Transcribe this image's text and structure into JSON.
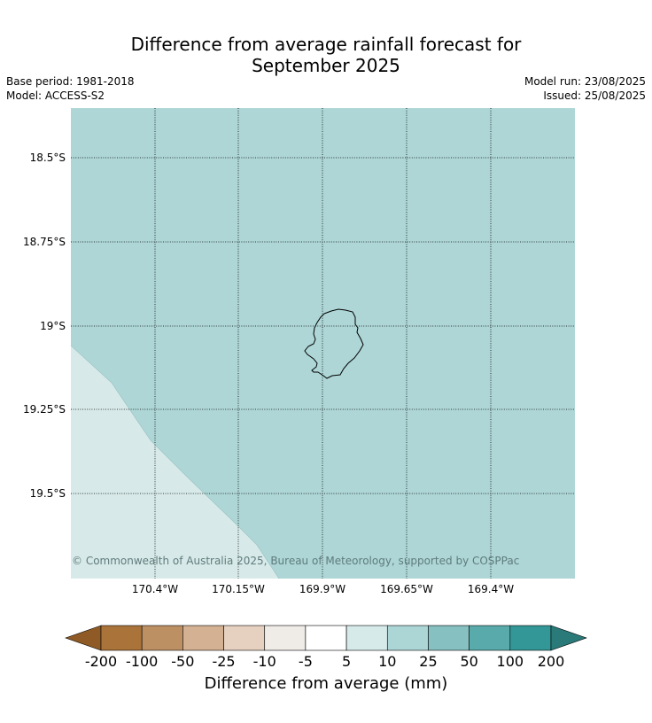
{
  "title_line1": "Difference from average rainfall forecast for",
  "title_line2": "September 2025",
  "base_period": "Base period: 1981-2018",
  "model": "Model: ACCESS-S2",
  "model_run": "Model run: 23/08/2025",
  "issued": "Issued: 25/08/2025",
  "copyright": "© Commonwealth of Australia 2025, Bureau of Meteorology, supported by COSPPac",
  "lat_labels": [
    "18.5°S",
    "18.75°S",
    "19°S",
    "19.25°S",
    "19.5°S"
  ],
  "lon_labels": [
    "170.4°W",
    "170.15°W",
    "169.9°W",
    "169.65°W",
    "169.4°W"
  ],
  "regions": {
    "main_category": "10 to 25 mm",
    "main_color": "#aed6d6",
    "sw_category": "5 to 10 mm",
    "sw_color": "#d7eae9"
  },
  "colorbar": {
    "title": "Difference from average (mm)",
    "tick_labels": [
      "-200",
      "-100",
      "-50",
      "-25",
      "-10",
      "-5",
      "5",
      "10",
      "25",
      "50",
      "100",
      "200"
    ],
    "colors": [
      "#aa733a",
      "#bd9064",
      "#d4b192",
      "#e6d1c1",
      "#efebe7",
      "#ffffff",
      "#d6eaea",
      "#acd5d5",
      "#86c0c1",
      "#59abab",
      "#339797"
    ],
    "under_color": "#8f5a25",
    "over_color": "#2a7a7a"
  }
}
